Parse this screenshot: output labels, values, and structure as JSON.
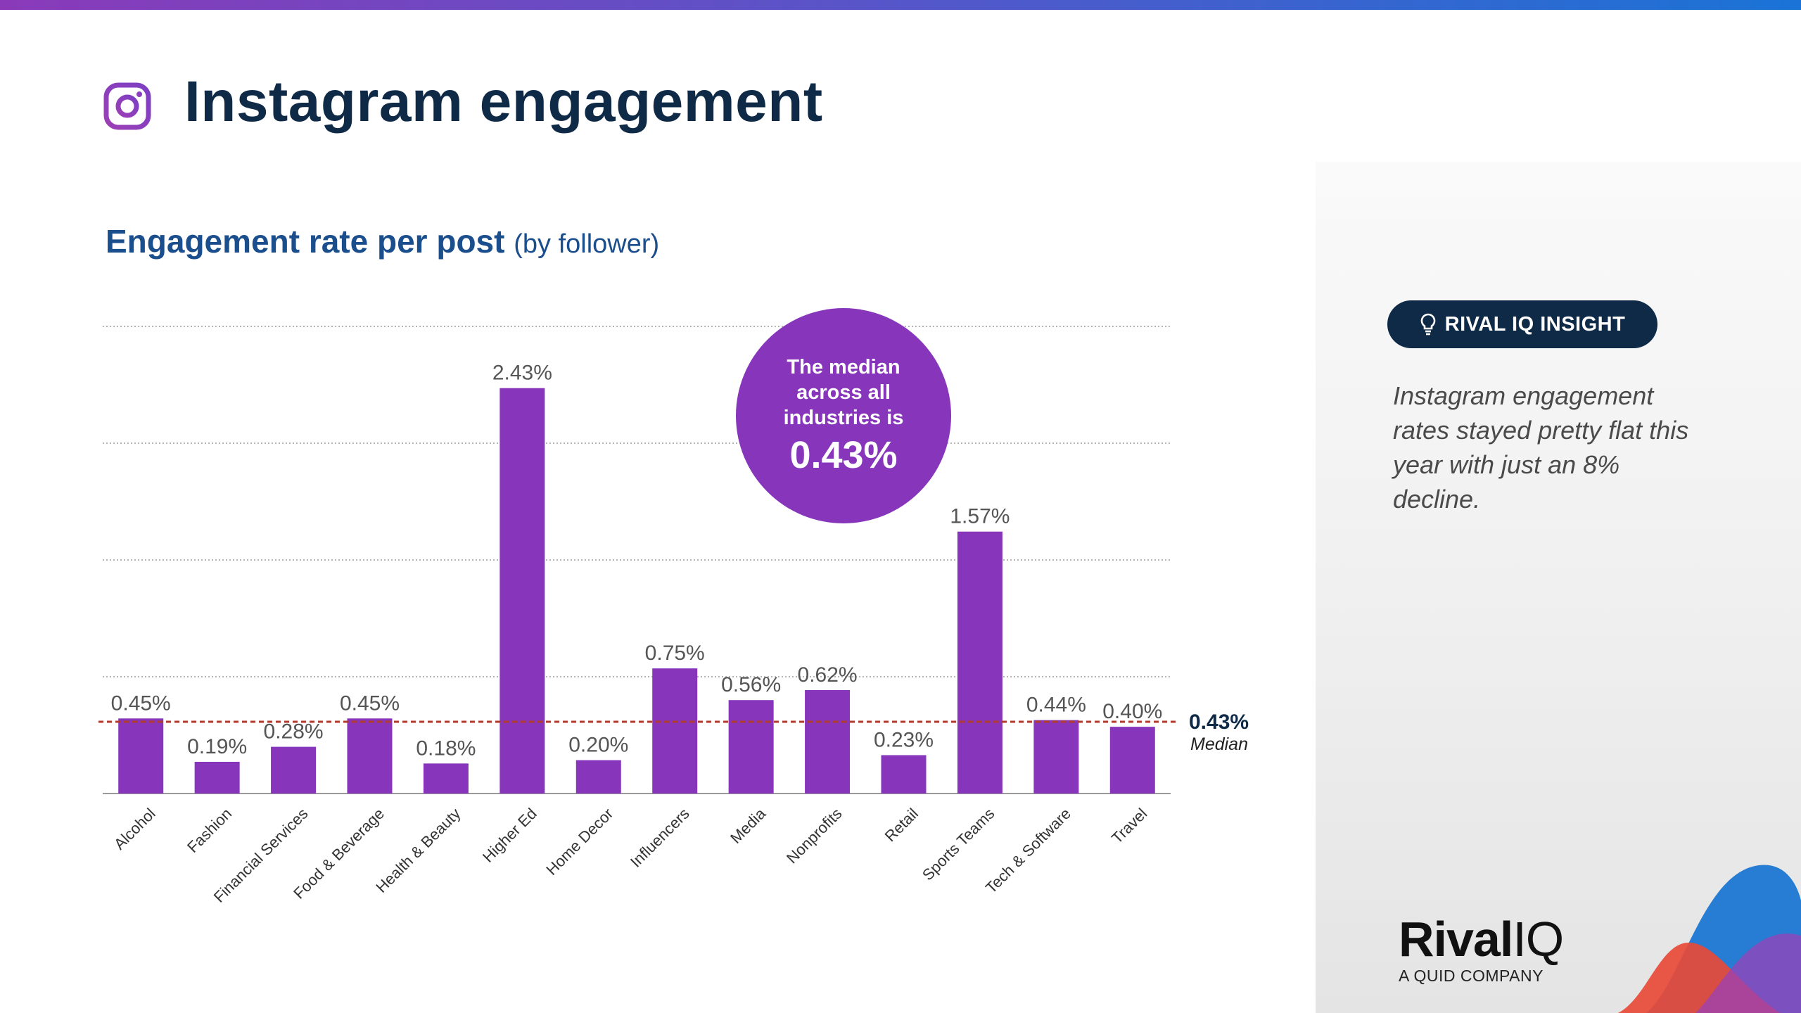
{
  "header": {
    "title": "Instagram engagement",
    "icon": "instagram-icon"
  },
  "subtitle": {
    "main": "Engagement rate per post",
    "qualifier": "(by follower)"
  },
  "chart_data": {
    "type": "bar",
    "title": "Engagement rate per post (by follower)",
    "categories": [
      "Alcohol",
      "Fashion",
      "Financial Services",
      "Food & Beverage",
      "Health & Beauty",
      "Higher Ed",
      "Home Decor",
      "Influencers",
      "Media",
      "Nonprofits",
      "Retail",
      "Sports Teams",
      "Tech & Software",
      "Travel"
    ],
    "values": [
      0.45,
      0.19,
      0.28,
      0.45,
      0.18,
      2.43,
      0.2,
      0.75,
      0.56,
      0.62,
      0.23,
      1.57,
      0.44,
      0.4
    ],
    "value_labels": [
      "0.45%",
      "0.19%",
      "0.28%",
      "0.45%",
      "0.18%",
      "2.43%",
      "0.20%",
      "0.75%",
      "0.56%",
      "0.62%",
      "0.23%",
      "1.57%",
      "0.44%",
      "0.40%"
    ],
    "ylim": [
      0,
      2.8
    ],
    "gridlines": [
      0.7,
      1.4,
      2.1,
      2.8
    ],
    "xlabel": "",
    "ylabel": "",
    "bar_color": "#8736bb",
    "median": {
      "value": 0.43,
      "label": "0.43%",
      "caption": "Median",
      "color": "#b03a2e"
    },
    "callout": {
      "line1": "The median",
      "line2": "across all",
      "line3": "industries is",
      "value": "0.43%",
      "color": "#8736bb"
    }
  },
  "insight": {
    "badge_icon": "lightbulb-icon",
    "badge_label": "RIVAL IQ INSIGHT",
    "text": "Instagram engagement rates stayed pretty flat this year with just an 8% decline."
  },
  "branding": {
    "logo_bold": "Rival",
    "logo_light": "IQ",
    "tagline": "A QUID COMPANY"
  },
  "colors": {
    "title": "#0e2a47",
    "subtitle": "#1a4e8c",
    "accent": "#8736bb",
    "badge_bg": "#0e2a47"
  }
}
